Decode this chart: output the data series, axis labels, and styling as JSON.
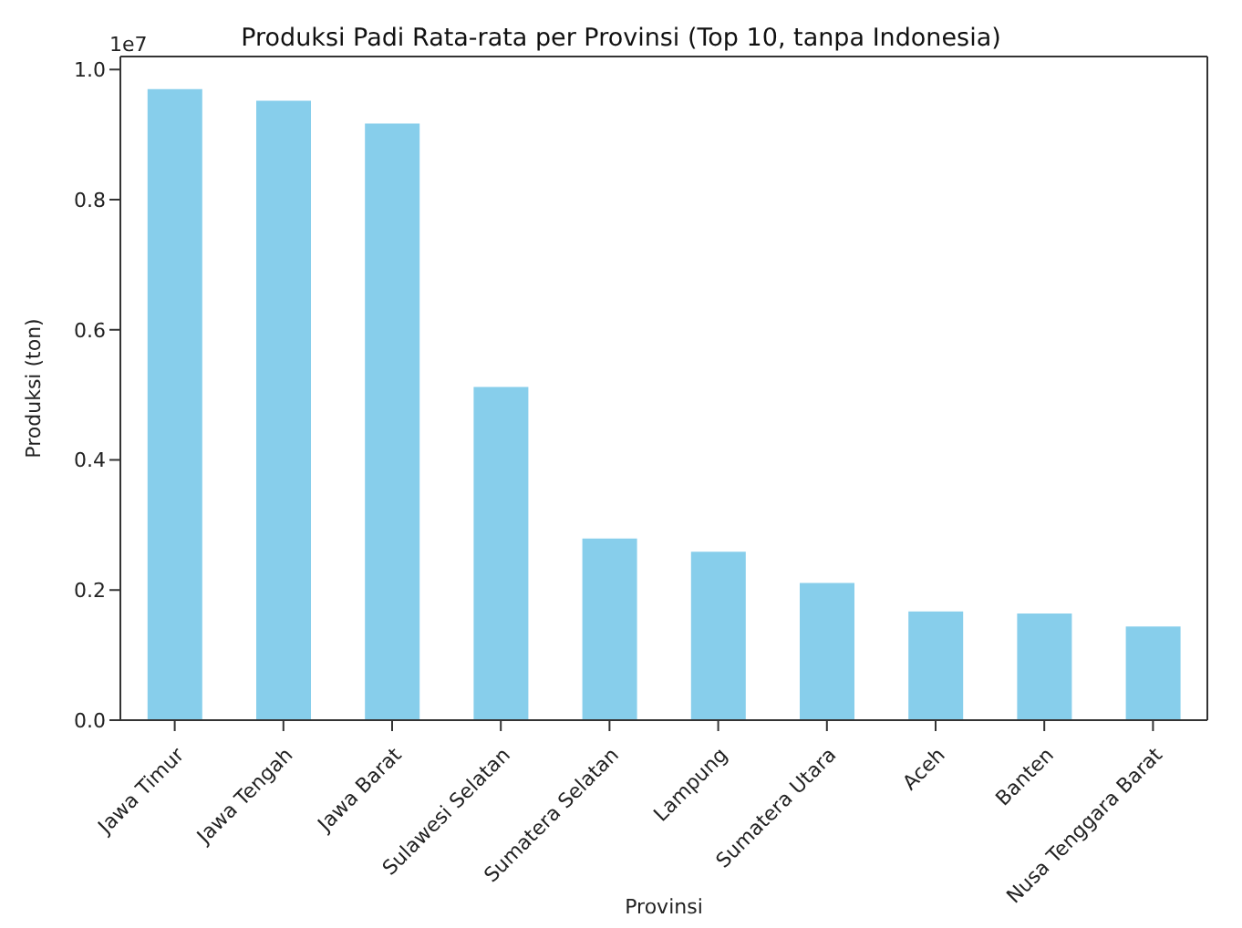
{
  "chart_data": {
    "type": "bar",
    "title": "Produksi Padi Rata-rata per Provinsi (Top 10, tanpa Indonesia)",
    "xlabel": "Provinsi",
    "ylabel": "Produksi (ton)",
    "categories": [
      "Jawa Timur",
      "Jawa Tengah",
      "Jawa Barat",
      "Sulawesi Selatan",
      "Sumatera Selatan",
      "Lampung",
      "Sumatera Utara",
      "Aceh",
      "Banten",
      "Nusa Tenggara Barat"
    ],
    "values": [
      0.97,
      0.952,
      0.917,
      0.512,
      0.279,
      0.259,
      0.211,
      0.167,
      0.164,
      0.144
    ],
    "color": "#87ceeb",
    "ylim": [
      0,
      1.02
    ],
    "yticks": [
      {
        "value": 0,
        "label": "0.0"
      },
      {
        "value": 0.2,
        "label": "0.2"
      },
      {
        "value": 0.4,
        "label": "0.4"
      },
      {
        "value": 0.6,
        "label": "0.6"
      },
      {
        "value": 0.8,
        "label": "0.8"
      },
      {
        "value": 1,
        "label": "1.0"
      }
    ],
    "annotations": [
      "1e7"
    ],
    "grid": false,
    "legend": false
  }
}
